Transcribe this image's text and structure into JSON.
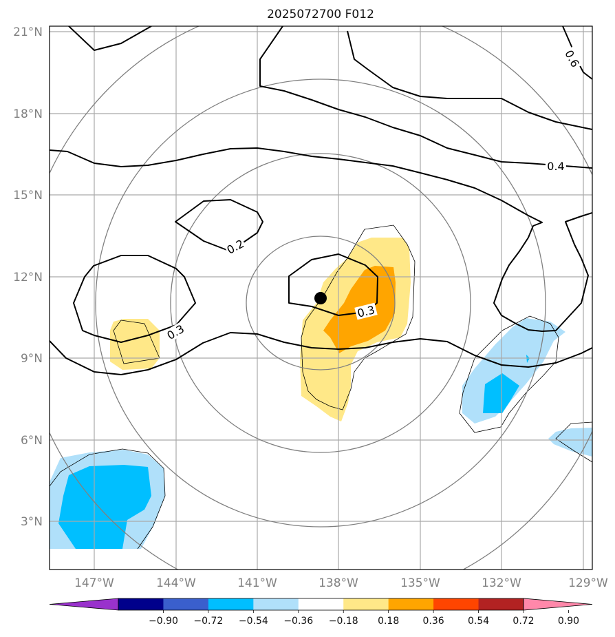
{
  "title": "2025072700 F012",
  "map": {
    "lat_labels": [
      "21°N",
      "18°N",
      "15°N",
      "12°N",
      "9°N",
      "6°N",
      "3°N"
    ],
    "lon_labels": [
      "147°W",
      "144°W",
      "141°W",
      "138°W",
      "135°W",
      "132°W",
      "129°W"
    ],
    "contour_labels": [
      "0.2",
      "0.3",
      "0.3",
      "0.4",
      "0.6"
    ],
    "storm_center": {
      "lat": 11.2,
      "lon": -138.6
    }
  },
  "colorbar": {
    "labels": [
      "−0.90",
      "−0.72",
      "−0.54",
      "−0.36",
      "−0.18",
      "0.18",
      "0.36",
      "0.54",
      "0.72",
      "0.90"
    ],
    "colors": [
      "#9932cc",
      "#00008b",
      "#3a5fcd",
      "#00bfff",
      "#b0e0fa",
      "#ffffff",
      "#ffe888",
      "#ffa500",
      "#ff4500",
      "#b22222",
      "#ff88aa"
    ]
  }
}
